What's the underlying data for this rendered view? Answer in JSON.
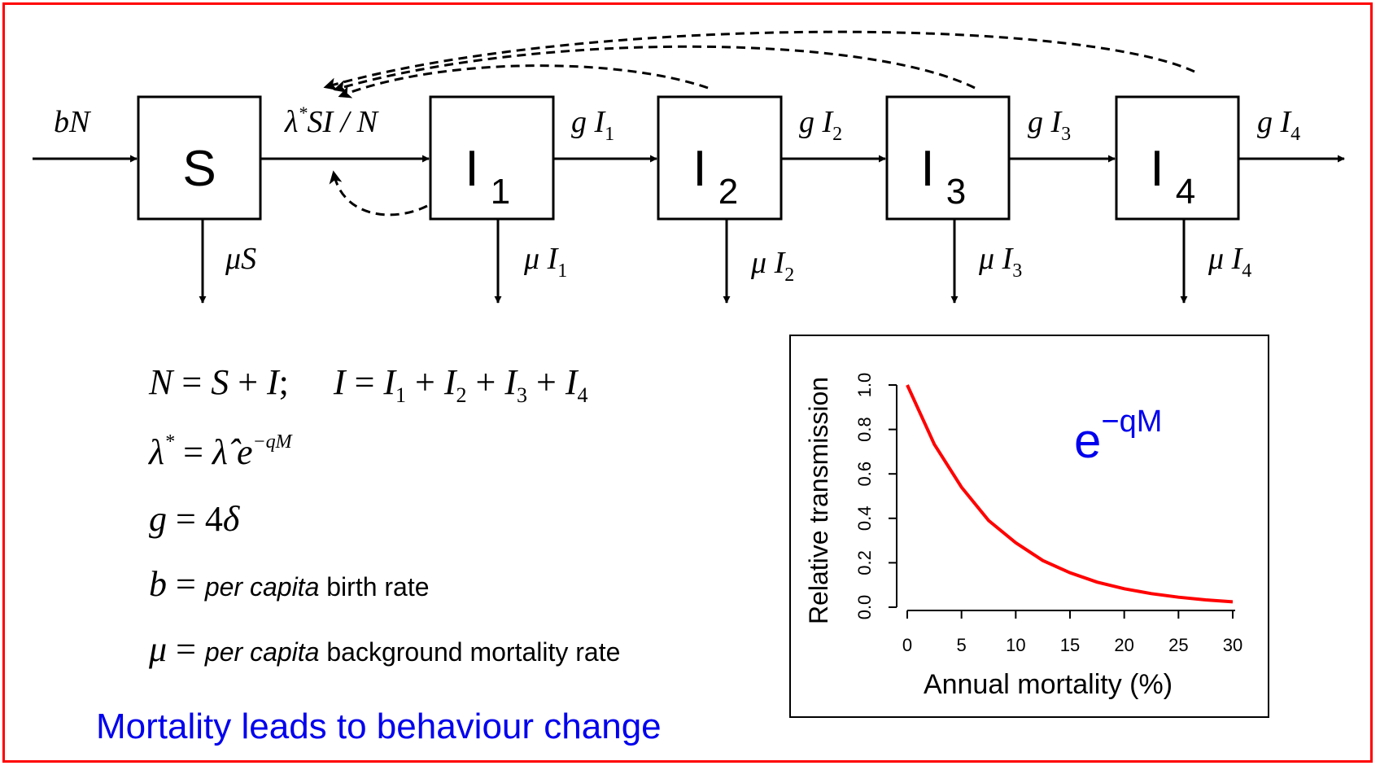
{
  "compartments": [
    {
      "id": "S",
      "label": "S",
      "sub": ""
    },
    {
      "id": "I1",
      "label": "I",
      "sub": "1"
    },
    {
      "id": "I2",
      "label": "I",
      "sub": "2"
    },
    {
      "id": "I3",
      "label": "I",
      "sub": "3"
    },
    {
      "id": "I4",
      "label": "I",
      "sub": "4"
    }
  ],
  "flows": {
    "birth": {
      "a": "bN"
    },
    "infection": {
      "a": "λ",
      "sup": "*",
      "b": "SI / N"
    },
    "progression": [
      {
        "a": "g I",
        "sub": "1"
      },
      {
        "a": "g I",
        "sub": "2"
      },
      {
        "a": "g I",
        "sub": "3"
      },
      {
        "a": "g I",
        "sub": "4"
      }
    ],
    "mortality": [
      {
        "a": "μS",
        "sub": ""
      },
      {
        "a": "μ I",
        "sub": "1"
      },
      {
        "a": "μ I",
        "sub": "2"
      },
      {
        "a": "μ I",
        "sub": "3"
      },
      {
        "a": "μ I",
        "sub": "4"
      }
    ]
  },
  "equations": {
    "line1": {
      "N": "N",
      "eq1": " = ",
      "S": "S",
      "plus1": " + ",
      "I": "I",
      "sep": ";     ",
      "I2": "I",
      "eq2": " = ",
      "t1": "I",
      "s1": "1",
      "p1": " + ",
      "t2": "I",
      "s2": "2",
      "p2": " + ",
      "t3": "I",
      "s3": "3",
      "p3": " + ",
      "t4": "I",
      "s4": "4"
    },
    "line2": {
      "lam": "λ",
      "star": "*",
      "eq": " = ",
      "lamhat": "λ̂",
      "e": " e",
      "exp": "−qM"
    },
    "line3": {
      "g": "g",
      "eq": " = 4",
      "delta": "δ"
    },
    "line4": {
      "sym": "b",
      "eq": " = ",
      "desc_italic": "per capita",
      "desc": " birth rate"
    },
    "line5": {
      "sym": "μ",
      "eq": " = ",
      "desc_italic": "per capita",
      "desc": " background mortality rate"
    }
  },
  "caption": "Mortality leads to behaviour change",
  "colors": {
    "frame": "#ff0000",
    "curve": "#ff0000",
    "caption": "#0000ee",
    "formula": "#0000ee"
  },
  "chart_data": {
    "type": "line",
    "title": "",
    "xlabel": "Annual mortality (%)",
    "ylabel": "Relative transmission",
    "xlim": [
      0,
      30
    ],
    "ylim": [
      0,
      1
    ],
    "xticks": [
      "0",
      "5",
      "10",
      "15",
      "20",
      "25",
      "30"
    ],
    "yticks": [
      "0.0",
      "0.2",
      "0.4",
      "0.6",
      "0.8",
      "1.0"
    ],
    "formula": {
      "base": "e",
      "exp": "−qM"
    },
    "grid": false,
    "series": [
      {
        "x": [
          0,
          2.5,
          5,
          7.5,
          10,
          12.5,
          15,
          17.5,
          20,
          22.5,
          25,
          27.5,
          30
        ],
        "y": [
          1.0,
          0.733,
          0.54,
          0.39,
          0.29,
          0.21,
          0.155,
          0.113,
          0.083,
          0.061,
          0.045,
          0.033,
          0.024
        ]
      }
    ]
  }
}
